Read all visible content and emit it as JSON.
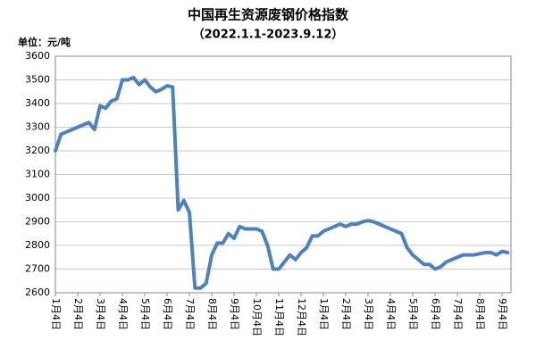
{
  "chart_data": {
    "type": "line",
    "title": "中国再生资源废钢价格指数",
    "subtitle": "（2022.1.1-2023.9.12）",
    "y_label": "单位：元/吨",
    "categories": [
      "1月4日",
      null,
      null,
      null,
      "2月4日",
      null,
      null,
      null,
      "3月4日",
      null,
      null,
      null,
      "4月4日",
      null,
      null,
      null,
      "5月4日",
      null,
      null,
      null,
      "6月4日",
      null,
      null,
      null,
      "7月4日",
      null,
      null,
      null,
      "8月4日",
      null,
      null,
      null,
      "9月4日",
      null,
      null,
      null,
      "10月4日",
      null,
      null,
      null,
      "11月4日",
      null,
      null,
      null,
      "12月4日",
      null,
      null,
      null,
      "1月4日",
      null,
      null,
      null,
      "2月4日",
      null,
      null,
      null,
      "3月4日",
      null,
      null,
      null,
      "4月4日",
      null,
      null,
      null,
      "5月4日",
      null,
      null,
      null,
      "6月4日",
      null,
      null,
      null,
      "7月4日",
      null,
      null,
      null,
      "8月4日",
      null,
      null,
      null,
      "9月4日",
      null
    ],
    "values": [
      3200,
      3270,
      3280,
      3290,
      3300,
      3310,
      3320,
      3290,
      3390,
      3380,
      3410,
      3420,
      3500,
      3500,
      3510,
      3480,
      3500,
      3470,
      3450,
      3460,
      3475,
      3470,
      2950,
      2990,
      2940,
      2620,
      2620,
      2640,
      2760,
      2810,
      2810,
      2850,
      2830,
      2880,
      2870,
      2870,
      2870,
      2860,
      2800,
      2700,
      2700,
      2730,
      2760,
      2740,
      2770,
      2790,
      2840,
      2840,
      2860,
      2870,
      2880,
      2890,
      2880,
      2890,
      2890,
      2900,
      2905,
      2900,
      2890,
      2880,
      2870,
      2860,
      2850,
      2790,
      2760,
      2740,
      2720,
      2720,
      2700,
      2710,
      2730,
      2740,
      2750,
      2760,
      2760,
      2760,
      2765,
      2770,
      2770,
      2760,
      2775,
      2770
    ],
    "color": "#4f81bd",
    "ylim": [
      2600,
      3600
    ],
    "yticks": [
      2600,
      2700,
      2800,
      2900,
      3000,
      3100,
      3200,
      3300,
      3400,
      3500,
      3600
    ],
    "grid": true
  }
}
